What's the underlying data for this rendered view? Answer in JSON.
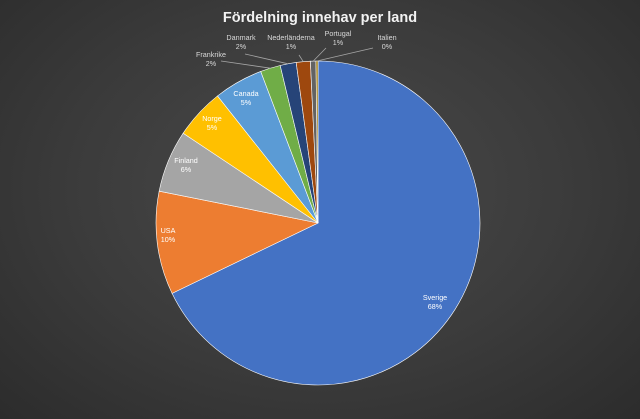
{
  "chart_data": {
    "type": "pie",
    "title": "Fördelning innehav per land",
    "slices": [
      {
        "label": "Sverige",
        "value": 68,
        "value_label": "68%",
        "color": "#4472C4"
      },
      {
        "label": "USA",
        "value": 10,
        "value_label": "10%",
        "color": "#ED7D31"
      },
      {
        "label": "Finland",
        "value": 6,
        "value_label": "6%",
        "color": "#A5A5A5"
      },
      {
        "label": "Norge",
        "value": 5,
        "value_label": "5%",
        "color": "#FFC000"
      },
      {
        "label": "Canada",
        "value": 5,
        "value_label": "5%",
        "color": "#5B9BD5"
      },
      {
        "label": "Frankrike",
        "value": 2,
        "value_label": "2%",
        "color": "#70AD47"
      },
      {
        "label": "Danmark",
        "value": 2,
        "value_label": "2%",
        "color": "#264478"
      },
      {
        "label": "Nederländerna",
        "value": 1,
        "value_label": "1%",
        "color": "#9E480E"
      },
      {
        "label": "Portugal",
        "value": 1,
        "value_label": "1%",
        "color": "#636363"
      },
      {
        "label": "Italien",
        "value": 0,
        "value_label": "0%",
        "color": "#997300"
      }
    ]
  }
}
